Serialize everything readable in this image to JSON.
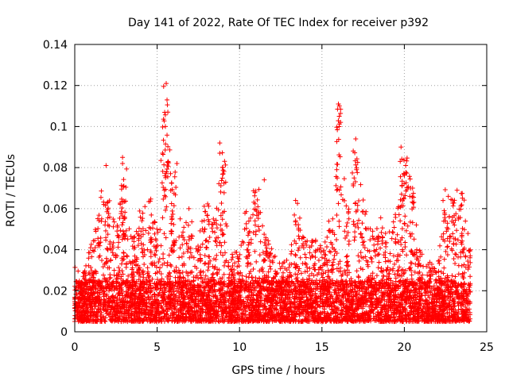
{
  "chart_data": {
    "type": "scatter",
    "title": "Day 141 of 2022, Rate Of TEC Index for receiver p392",
    "xlabel": "GPS time / hours",
    "ylabel": "ROTI / TECUs",
    "xlim": [
      0,
      25
    ],
    "ylim": [
      0,
      0.14
    ],
    "xticks": [
      0,
      5,
      10,
      15,
      20,
      25
    ],
    "xtick_labels": [
      "0",
      "5",
      "10",
      "15",
      "20",
      "25"
    ],
    "yticks": [
      0,
      0.02,
      0.04,
      0.06,
      0.08,
      0.1,
      0.12,
      0.14
    ],
    "ytick_labels": [
      "0",
      "0.02",
      "0.04",
      "0.06",
      "0.08",
      "0.1",
      "0.12",
      "0.14"
    ],
    "grid": true,
    "marker": "+",
    "color": "#ff0000",
    "x_data_extent": [
      0,
      24
    ],
    "baseline_band": [
      0.005,
      0.025
    ],
    "envelope": [
      [
        0.0,
        0.025
      ],
      [
        0.5,
        0.028
      ],
      [
        1.0,
        0.045
      ],
      [
        1.5,
        0.07
      ],
      [
        2.0,
        0.065
      ],
      [
        2.5,
        0.055
      ],
      [
        3.0,
        0.08
      ],
      [
        3.5,
        0.045
      ],
      [
        4.0,
        0.06
      ],
      [
        4.5,
        0.065
      ],
      [
        5.0,
        0.055
      ],
      [
        5.5,
        0.121
      ],
      [
        6.0,
        0.08
      ],
      [
        6.5,
        0.05
      ],
      [
        7.0,
        0.06
      ],
      [
        7.5,
        0.045
      ],
      [
        8.0,
        0.065
      ],
      [
        8.5,
        0.055
      ],
      [
        9.0,
        0.09
      ],
      [
        9.5,
        0.04
      ],
      [
        10.0,
        0.04
      ],
      [
        10.5,
        0.06
      ],
      [
        11.0,
        0.07
      ],
      [
        11.5,
        0.05
      ],
      [
        12.0,
        0.04
      ],
      [
        12.5,
        0.035
      ],
      [
        13.0,
        0.035
      ],
      [
        13.5,
        0.063
      ],
      [
        14.0,
        0.05
      ],
      [
        14.5,
        0.045
      ],
      [
        15.0,
        0.045
      ],
      [
        15.5,
        0.055
      ],
      [
        16.0,
        0.111
      ],
      [
        16.5,
        0.06
      ],
      [
        17.0,
        0.094
      ],
      [
        17.5,
        0.065
      ],
      [
        18.0,
        0.048
      ],
      [
        18.5,
        0.06
      ],
      [
        19.0,
        0.05
      ],
      [
        19.5,
        0.062
      ],
      [
        20.0,
        0.09
      ],
      [
        20.5,
        0.07
      ],
      [
        21.0,
        0.04
      ],
      [
        21.5,
        0.035
      ],
      [
        22.0,
        0.03
      ],
      [
        22.5,
        0.07
      ],
      [
        23.0,
        0.065
      ],
      [
        23.5,
        0.07
      ],
      [
        24.0,
        0.04
      ]
    ],
    "peaks": [
      {
        "x": 5.55,
        "y": 0.121
      },
      {
        "x": 5.6,
        "y": 0.113
      },
      {
        "x": 5.5,
        "y": 0.1
      },
      {
        "x": 16.0,
        "y": 0.111
      },
      {
        "x": 16.05,
        "y": 0.105
      },
      {
        "x": 17.05,
        "y": 0.094
      },
      {
        "x": 8.8,
        "y": 0.092
      },
      {
        "x": 8.8,
        "y": 0.087
      },
      {
        "x": 19.8,
        "y": 0.09
      },
      {
        "x": 19.75,
        "y": 0.083
      },
      {
        "x": 2.9,
        "y": 0.085
      },
      {
        "x": 2.9,
        "y": 0.082
      },
      {
        "x": 1.9,
        "y": 0.081
      },
      {
        "x": 6.2,
        "y": 0.082
      },
      {
        "x": 11.5,
        "y": 0.074
      },
      {
        "x": 20.5,
        "y": 0.07
      },
      {
        "x": 23.2,
        "y": 0.069
      },
      {
        "x": 13.4,
        "y": 0.064
      },
      {
        "x": 16.9,
        "y": 0.072
      },
      {
        "x": 15.9,
        "y": 0.079
      }
    ]
  }
}
